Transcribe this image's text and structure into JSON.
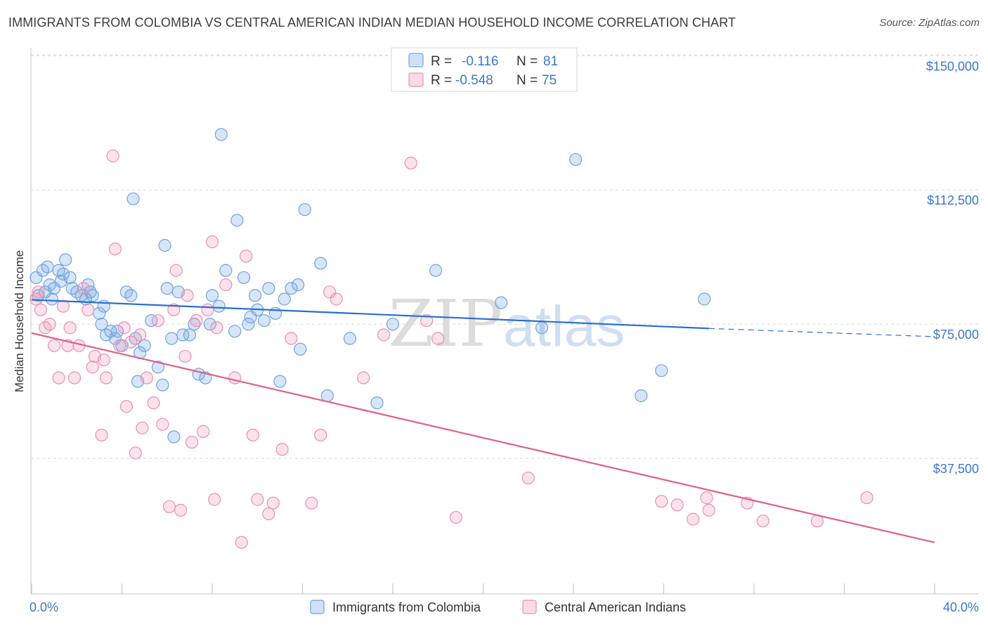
{
  "header": {
    "title": "IMMIGRANTS FROM COLOMBIA VS CENTRAL AMERICAN INDIAN MEDIAN HOUSEHOLD INCOME CORRELATION CHART",
    "source": "Source: ZipAtlas.com"
  },
  "watermark": {
    "part1": "ZIP",
    "part2": "atlas"
  },
  "colors": {
    "blue": "#6fa3e0",
    "blue_fill": "rgba(120,170,230,0.30)",
    "blue_line": "#2a6fd0",
    "pink": "#eb8fb0",
    "pink_fill": "rgba(240,150,185,0.28)",
    "pink_line": "#e0608e",
    "axis_text": "#3a78c8",
    "grid": "#d8d8d8"
  },
  "legend": {
    "rows": [
      {
        "r_label": "R =",
        "r_value": "-0.116",
        "n_label": "N =",
        "n_value": "81"
      },
      {
        "r_label": "R =",
        "r_value": "-0.548",
        "n_label": "N =",
        "n_value": "75"
      }
    ]
  },
  "chart_data": {
    "type": "scatter",
    "title": "IMMIGRANTS FROM COLOMBIA VS CENTRAL AMERICAN INDIAN MEDIAN HOUSEHOLD INCOME CORRELATION CHART",
    "xlabel": "",
    "ylabel": "Median Household Income",
    "xlim": [
      0,
      40
    ],
    "ylim": [
      0,
      153000
    ],
    "x_tick_labels": [
      "0.0%",
      "40.0%"
    ],
    "y_ticks": [
      37500,
      75000,
      112500,
      150000
    ],
    "y_tick_labels": [
      "$37,500",
      "$75,000",
      "$112,500",
      "$150,000"
    ],
    "grid": true,
    "legend_position": "top-center",
    "series": [
      {
        "name": "Immigrants from Colombia",
        "color": "blue",
        "R": -0.116,
        "N": 81,
        "trend": {
          "x0": 0,
          "y0": 81800,
          "x1": 30,
          "y1": 73800,
          "dashed_to_x": 40,
          "dashed_to_y": 71500
        },
        "points": [
          [
            0.2,
            88000
          ],
          [
            0.3,
            83000
          ],
          [
            0.5,
            90000
          ],
          [
            0.7,
            91000
          ],
          [
            0.8,
            86000
          ],
          [
            0.9,
            82000
          ],
          [
            1.2,
            90000
          ],
          [
            1.3,
            87000
          ],
          [
            1.4,
            89000
          ],
          [
            1.5,
            93000
          ],
          [
            1.7,
            88000
          ],
          [
            1.8,
            85000
          ],
          [
            2.0,
            84000
          ],
          [
            2.2,
            83000
          ],
          [
            2.4,
            82000
          ],
          [
            2.6,
            84000
          ],
          [
            2.7,
            83000
          ],
          [
            3.0,
            78000
          ],
          [
            3.1,
            75000
          ],
          [
            3.3,
            72000
          ],
          [
            3.5,
            73000
          ],
          [
            3.7,
            71000
          ],
          [
            3.8,
            73000
          ],
          [
            4.0,
            69000
          ],
          [
            4.2,
            84000
          ],
          [
            4.4,
            83000
          ],
          [
            4.6,
            71000
          ],
          [
            4.7,
            59000
          ],
          [
            4.8,
            67000
          ],
          [
            5.0,
            69000
          ],
          [
            5.3,
            76000
          ],
          [
            5.6,
            63000
          ],
          [
            5.8,
            58000
          ],
          [
            5.9,
            97000
          ],
          [
            6.0,
            85000
          ],
          [
            6.2,
            71000
          ],
          [
            6.5,
            84000
          ],
          [
            6.7,
            72000
          ],
          [
            7.0,
            72000
          ],
          [
            7.4,
            61000
          ],
          [
            7.7,
            60000
          ],
          [
            7.9,
            75000
          ],
          [
            8.0,
            83000
          ],
          [
            8.3,
            80000
          ],
          [
            8.6,
            90000
          ],
          [
            9.0,
            73000
          ],
          [
            9.1,
            104000
          ],
          [
            9.4,
            88000
          ],
          [
            9.6,
            75000
          ],
          [
            9.9,
            83000
          ],
          [
            10.0,
            79000
          ],
          [
            10.3,
            76000
          ],
          [
            10.5,
            85000
          ],
          [
            10.8,
            78000
          ],
          [
            11.0,
            59000
          ],
          [
            11.2,
            82000
          ],
          [
            11.5,
            85000
          ],
          [
            11.9,
            68000
          ],
          [
            12.1,
            107000
          ],
          [
            6.3,
            43500
          ],
          [
            8.4,
            128000
          ],
          [
            12.8,
            92000
          ],
          [
            13.1,
            55000
          ],
          [
            14.1,
            71000
          ],
          [
            15.3,
            53000
          ],
          [
            16.0,
            75000
          ],
          [
            17.9,
            90000
          ],
          [
            20.8,
            81000
          ],
          [
            22.6,
            74000
          ],
          [
            24.1,
            121000
          ],
          [
            27.0,
            55000
          ],
          [
            27.9,
            62000
          ],
          [
            29.8,
            82000
          ],
          [
            0.6,
            84000
          ],
          [
            1.0,
            85000
          ],
          [
            2.5,
            86000
          ],
          [
            4.5,
            110000
          ],
          [
            3.2,
            80000
          ],
          [
            7.2,
            75000
          ],
          [
            9.7,
            77000
          ],
          [
            11.8,
            86000
          ]
        ]
      },
      {
        "name": "Central American Indians",
        "color": "pink",
        "R": -0.548,
        "N": 75,
        "trend": {
          "x0": 0,
          "y0": 72500,
          "x1": 40,
          "y1": 14000
        },
        "points": [
          [
            0.2,
            82000
          ],
          [
            0.4,
            79000
          ],
          [
            0.6,
            74000
          ],
          [
            0.8,
            75000
          ],
          [
            1.0,
            69000
          ],
          [
            1.2,
            60000
          ],
          [
            1.4,
            80000
          ],
          [
            1.6,
            69000
          ],
          [
            1.7,
            74000
          ],
          [
            1.9,
            60000
          ],
          [
            2.1,
            69000
          ],
          [
            2.3,
            85000
          ],
          [
            2.5,
            79000
          ],
          [
            2.7,
            63000
          ],
          [
            2.8,
            66000
          ],
          [
            3.1,
            44000
          ],
          [
            3.2,
            65000
          ],
          [
            3.3,
            60000
          ],
          [
            3.6,
            122000
          ],
          [
            3.7,
            96000
          ],
          [
            3.9,
            69000
          ],
          [
            4.1,
            74000
          ],
          [
            4.2,
            52000
          ],
          [
            4.4,
            70000
          ],
          [
            4.6,
            39000
          ],
          [
            4.8,
            72000
          ],
          [
            4.9,
            46000
          ],
          [
            5.1,
            60000
          ],
          [
            5.4,
            53000
          ],
          [
            5.6,
            76000
          ],
          [
            5.8,
            47000
          ],
          [
            6.1,
            24000
          ],
          [
            6.3,
            79000
          ],
          [
            6.4,
            90000
          ],
          [
            6.6,
            23000
          ],
          [
            6.8,
            66000
          ],
          [
            7.1,
            42000
          ],
          [
            7.3,
            76000
          ],
          [
            7.6,
            45000
          ],
          [
            7.8,
            79000
          ],
          [
            8.0,
            98000
          ],
          [
            8.1,
            26000
          ],
          [
            8.2,
            74000
          ],
          [
            8.6,
            86000
          ],
          [
            9.0,
            60000
          ],
          [
            9.3,
            14000
          ],
          [
            9.5,
            94000
          ],
          [
            9.8,
            44000
          ],
          [
            10.0,
            26000
          ],
          [
            10.5,
            22000
          ],
          [
            10.7,
            25000
          ],
          [
            11.1,
            40000
          ],
          [
            11.5,
            71000
          ],
          [
            12.4,
            25000
          ],
          [
            12.8,
            44000
          ],
          [
            13.5,
            82000
          ],
          [
            14.7,
            60000
          ],
          [
            15.6,
            72000
          ],
          [
            16.8,
            120000
          ],
          [
            17.5,
            76000
          ],
          [
            18.0,
            71000
          ],
          [
            18.8,
            21000
          ],
          [
            22.0,
            32000
          ],
          [
            27.9,
            25500
          ],
          [
            28.6,
            24500
          ],
          [
            29.3,
            20500
          ],
          [
            29.9,
            26500
          ],
          [
            30.0,
            23000
          ],
          [
            31.7,
            25000
          ],
          [
            32.4,
            20000
          ],
          [
            34.8,
            20000
          ],
          [
            37.0,
            26500
          ],
          [
            0.3,
            84000
          ],
          [
            6.9,
            83000
          ],
          [
            13.2,
            84000
          ]
        ]
      }
    ]
  },
  "bottom_legend": {
    "items": [
      "Immigrants from Colombia",
      "Central American Indians"
    ]
  }
}
